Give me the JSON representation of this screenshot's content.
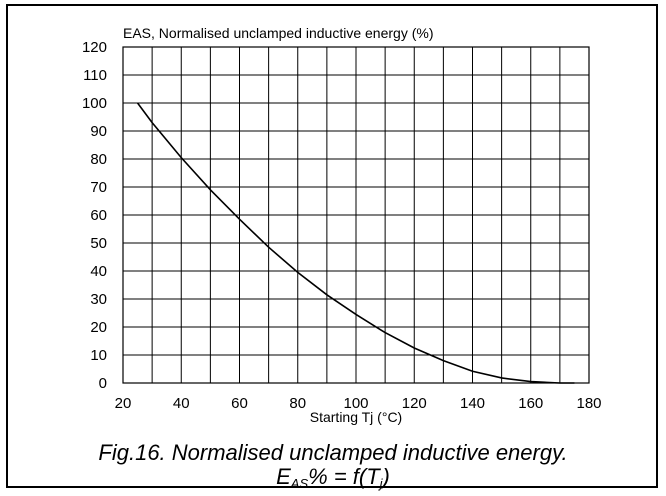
{
  "chart_data": {
    "type": "line",
    "title": "EAS, Normalised unclamped inductive energy (%)",
    "xlabel": "Starting Tj (°C)",
    "ylabel": "",
    "xlim": [
      20,
      180
    ],
    "ylim": [
      0,
      120
    ],
    "x_ticks": [
      "20",
      "40",
      "60",
      "80",
      "100",
      "120",
      "140",
      "160",
      "180"
    ],
    "y_ticks": [
      "0",
      "10",
      "20",
      "30",
      "40",
      "50",
      "60",
      "70",
      "80",
      "90",
      "100",
      "110",
      "120"
    ],
    "grid": true,
    "series": [
      {
        "x": [
          25,
          30,
          40,
          50,
          60,
          70,
          80,
          90,
          100,
          110,
          120,
          130,
          140,
          150,
          160,
          170,
          175
        ],
        "y": [
          100,
          93,
          80.5,
          69,
          58.5,
          48.5,
          39.5,
          31.5,
          24.5,
          18,
          12.5,
          8,
          4.2,
          1.8,
          0.5,
          0,
          0
        ]
      }
    ]
  },
  "caption": {
    "line1": "Fig.16.  Normalised unclamped inductive energy.",
    "eas_prefix": "E",
    "eas_sub": "AS",
    "eas_middle": "% = f(T",
    "tj_sub": "j",
    "eas_suffix": ")"
  }
}
